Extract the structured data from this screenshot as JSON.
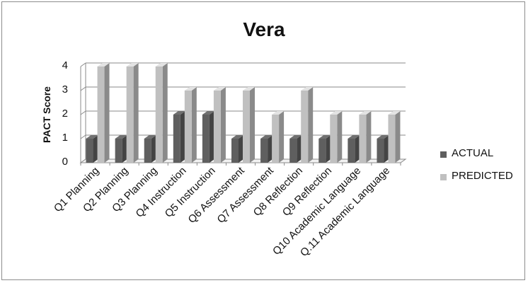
{
  "chart_data": {
    "type": "bar",
    "title": "Vera",
    "xlabel": "",
    "ylabel": "PACT Score",
    "ylim": [
      0,
      4
    ],
    "yticks": [
      0,
      1,
      2,
      3,
      4
    ],
    "grid": true,
    "legend_position": "right",
    "categories": [
      "Q1 Planning",
      "Q2 Planning",
      "Q3 Planning",
      "Q4 Instruction",
      "Q5 Instruction",
      "Q6 Assessment",
      "Q7 Assessment",
      "Q8 Reflection",
      "Q9 Reflection",
      "Q10 Academic Language",
      "Q.11 Academic Language"
    ],
    "series": [
      {
        "name": "ACTUAL",
        "color": "#5f5f5f",
        "values": [
          1,
          1,
          1,
          2,
          2,
          1,
          1,
          1,
          1,
          1,
          1
        ]
      },
      {
        "name": "PREDICTED",
        "color": "#c0c0c0",
        "values": [
          4,
          4,
          4,
          3,
          3,
          3,
          2,
          3,
          2,
          2,
          2
        ]
      }
    ]
  }
}
